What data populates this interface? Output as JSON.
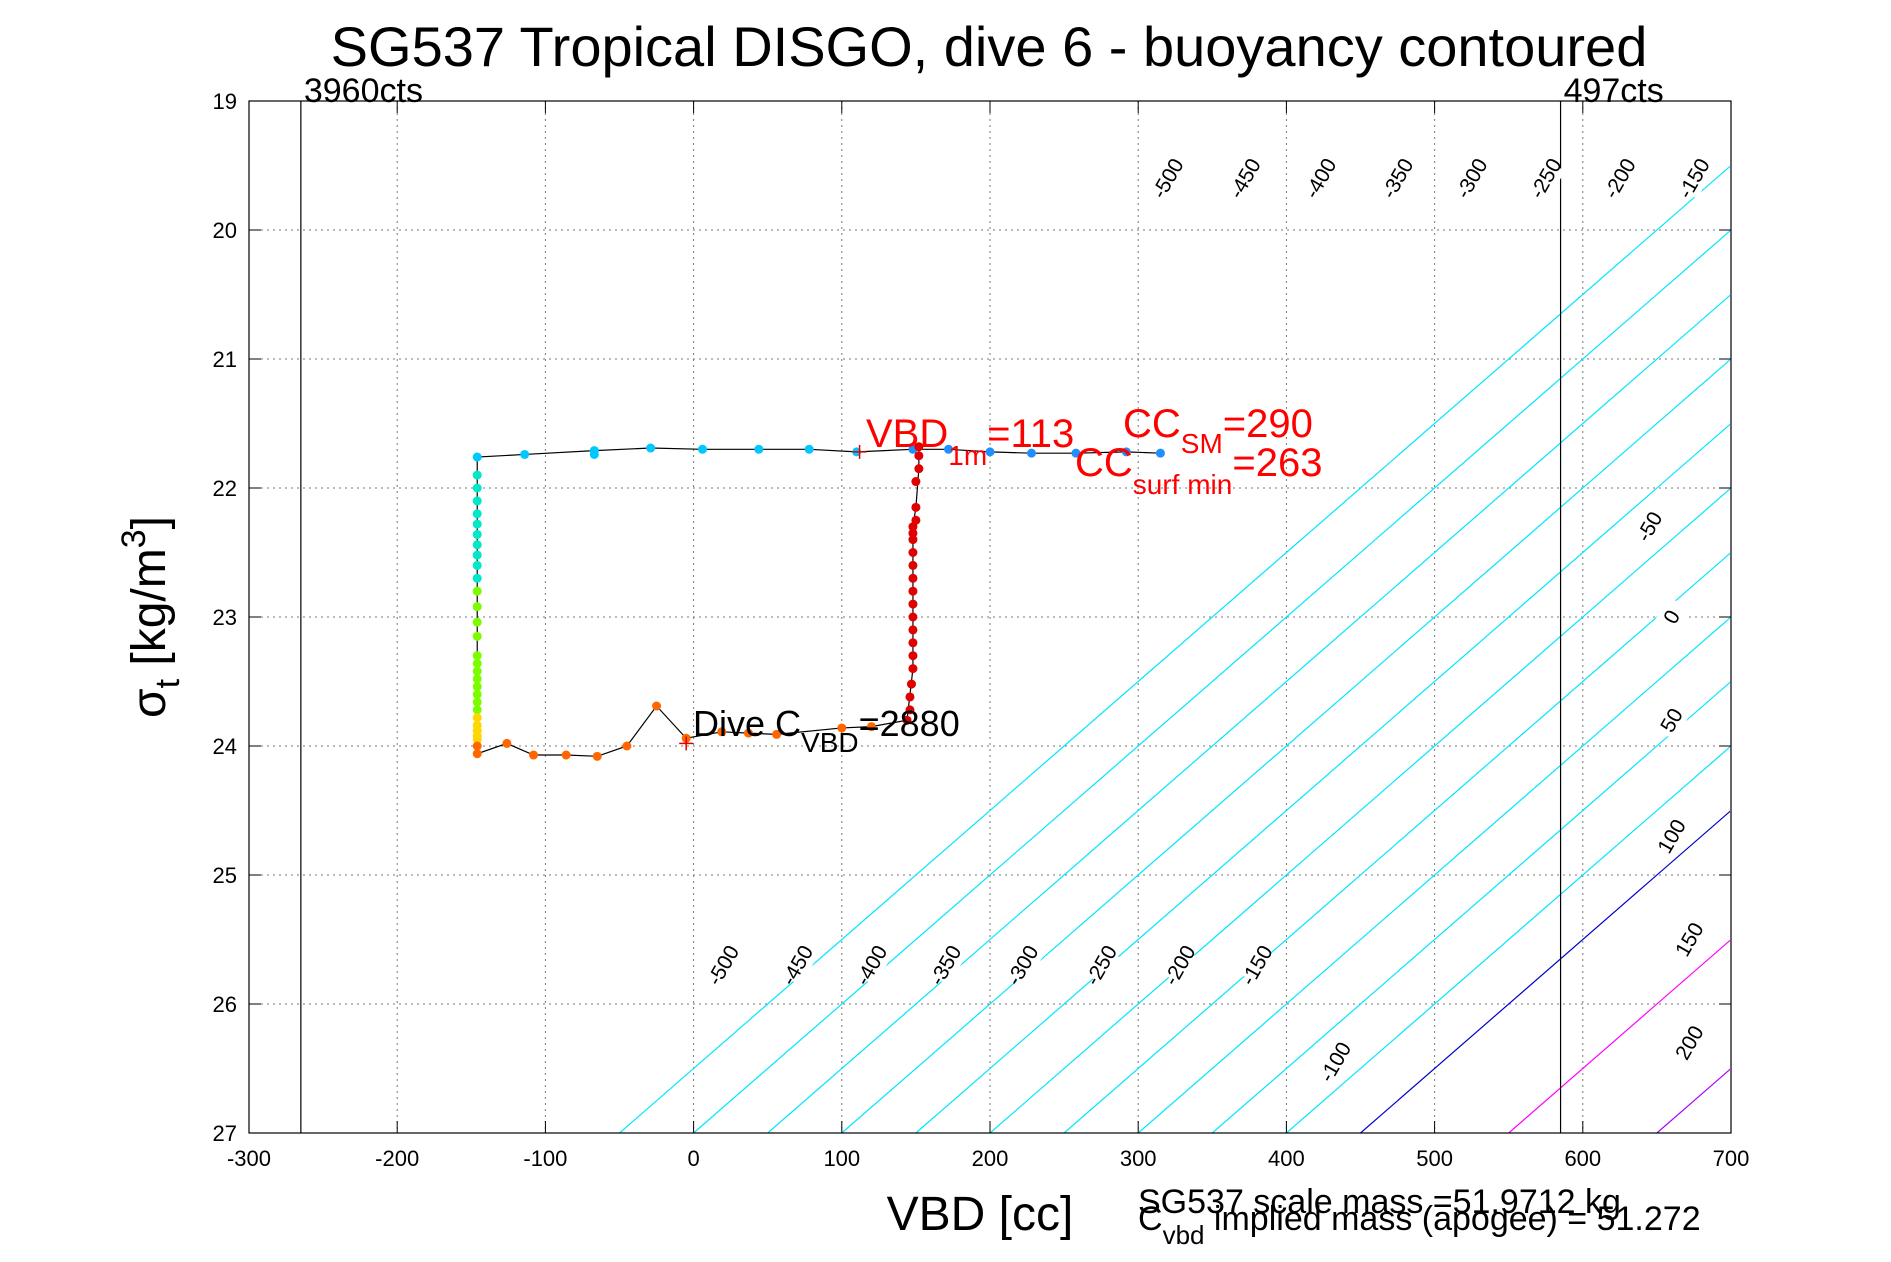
{
  "chart_data": {
    "type": "scatter",
    "title": "SG537 Tropical DISGO, dive 6 - buoyancy contoured",
    "xlabel": "VBD [cc]",
    "ylabel_main": "σ",
    "ylabel_sub": "t",
    "ylabel_unit_pre": " [kg/m",
    "ylabel_unit_sup": "3",
    "ylabel_unit_post": "]",
    "xlim": [
      -300,
      700
    ],
    "ylim": [
      19,
      27
    ],
    "y_reversed": true,
    "grid": true,
    "x_ticks": [
      -300,
      -200,
      -100,
      0,
      100,
      200,
      300,
      400,
      500,
      600,
      700
    ],
    "y_ticks": [
      19,
      20,
      21,
      22,
      23,
      24,
      25,
      26,
      27
    ],
    "vbd_limits": [
      {
        "x": -265,
        "label": "3960cts"
      },
      {
        "x": 585,
        "label": "497cts"
      }
    ],
    "contour_slope_cc_per_sigma": 100,
    "contours": [
      {
        "level": -500,
        "x_at_bottom": -50,
        "color": "#00e5ff"
      },
      {
        "level": -450,
        "x_at_bottom": 0,
        "color": "#00e5ff"
      },
      {
        "level": -400,
        "x_at_bottom": 50,
        "color": "#00e5ff"
      },
      {
        "level": -350,
        "x_at_bottom": 100,
        "color": "#00e5ff"
      },
      {
        "level": -300,
        "x_at_bottom": 150,
        "color": "#00e5ff"
      },
      {
        "level": -250,
        "x_at_bottom": 200,
        "color": "#00e5ff"
      },
      {
        "level": -200,
        "x_at_bottom": 250,
        "color": "#00e5ff"
      },
      {
        "level": -150,
        "x_at_bottom": 300,
        "color": "#00e5ff"
      },
      {
        "level": -100,
        "x_at_bottom": 350,
        "color": "#00e5ff"
      },
      {
        "level": -50,
        "x_at_bottom": 400,
        "color": "#00e5ff"
      },
      {
        "level": 0,
        "x_at_bottom": 450,
        "color": "#0000cc"
      },
      {
        "level": 50,
        "x_at_bottom": 550,
        "color": "#ff00ff"
      },
      {
        "level": 100,
        "x_at_bottom": 650,
        "color": "#aa00ff"
      }
    ],
    "contour_labels": [
      {
        "text": "-500",
        "x": 20,
        "y": 25.7
      },
      {
        "text": "-450",
        "x": 70,
        "y": 25.7
      },
      {
        "text": "-400",
        "x": 120,
        "y": 25.7
      },
      {
        "text": "-350",
        "x": 170,
        "y": 25.7
      },
      {
        "text": "-300",
        "x": 222,
        "y": 25.7
      },
      {
        "text": "-250",
        "x": 275,
        "y": 25.7
      },
      {
        "text": "-200",
        "x": 328,
        "y": 25.7
      },
      {
        "text": "-150",
        "x": 380,
        "y": 25.7
      },
      {
        "text": "-100",
        "x": 433,
        "y": 26.45
      },
      {
        "text": "-500",
        "x": 320,
        "y": 19.6
      },
      {
        "text": "-450",
        "x": 372,
        "y": 19.6
      },
      {
        "text": "-400",
        "x": 423,
        "y": 19.6
      },
      {
        "text": "-350",
        "x": 475,
        "y": 19.6
      },
      {
        "text": "-300",
        "x": 525,
        "y": 19.6
      },
      {
        "text": "-250",
        "x": 575,
        "y": 19.6
      },
      {
        "text": "-200",
        "x": 625,
        "y": 19.6
      },
      {
        "text": "-150",
        "x": 675,
        "y": 19.6
      },
      {
        "text": "-50",
        "x": 645,
        "y": 22.3
      },
      {
        "text": "0",
        "x": 660,
        "y": 23.0
      },
      {
        "text": "50",
        "x": 660,
        "y": 23.8
      },
      {
        "text": "100",
        "x": 660,
        "y": 24.7
      },
      {
        "text": "150",
        "x": 672,
        "y": 25.5
      },
      {
        "text": "200",
        "x": 672,
        "y": 26.3
      }
    ],
    "series": [
      {
        "x": [
          148,
          172,
          200,
          228,
          258,
          292,
          315
        ],
        "y": [
          21.7,
          21.7,
          21.72,
          21.73,
          21.73,
          21.72,
          21.73
        ],
        "color": "#1e90ff"
      },
      {
        "x": [
          110,
          78,
          44,
          6,
          -29,
          -67,
          -67,
          -114,
          -146
        ],
        "y": [
          21.72,
          21.7,
          21.7,
          21.7,
          21.69,
          21.71,
          21.74,
          21.74,
          21.76
        ],
        "color": "#00c8ff"
      },
      {
        "x": [
          -146,
          -146,
          -146,
          -146,
          -146,
          -146,
          -146,
          -146,
          -146,
          -146
        ],
        "y": [
          21.9,
          22.0,
          22.1,
          22.2,
          22.28,
          22.36,
          22.44,
          22.52,
          22.6,
          22.7
        ],
        "color": "#00e8c8"
      },
      {
        "x": [
          -146,
          -146,
          -146,
          -146,
          -146,
          -146,
          -146,
          -146,
          -146,
          -146,
          -146,
          -146
        ],
        "y": [
          22.8,
          22.92,
          23.04,
          23.15,
          23.3,
          23.36,
          23.42,
          23.48,
          23.54,
          23.6,
          23.66,
          23.72
        ],
        "color": "#7cfc00"
      },
      {
        "x": [
          -146,
          -146,
          -146,
          -146,
          -146
        ],
        "y": [
          23.78,
          23.84,
          23.88,
          23.92,
          23.95
        ],
        "color": "#ffd700"
      },
      {
        "x": [
          -146,
          -146,
          -126,
          -108,
          -86,
          -65,
          -45,
          -25,
          -5,
          19,
          37,
          56,
          100,
          120
        ],
        "y": [
          24.0,
          24.06,
          23.98,
          24.07,
          24.07,
          24.08,
          24.0,
          23.69,
          23.94,
          23.89,
          23.9,
          23.91,
          23.86,
          23.85
        ],
        "color": "#ff6600"
      },
      {
        "x": [
          144,
          146,
          146,
          147,
          148,
          148,
          148,
          148,
          148,
          148,
          148,
          148,
          148,
          148,
          148,
          148,
          148,
          150,
          150,
          150,
          152,
          152,
          152
        ],
        "y": [
          23.8,
          23.72,
          23.62,
          23.52,
          23.4,
          23.3,
          23.2,
          23.1,
          23.0,
          22.9,
          22.8,
          22.7,
          22.6,
          22.5,
          22.4,
          22.35,
          22.3,
          22.25,
          22.15,
          21.95,
          21.85,
          21.75,
          21.68
        ],
        "color": "#e00000"
      }
    ],
    "line": {
      "x": [
        315,
        292,
        258,
        228,
        200,
        172,
        148,
        110,
        78,
        44,
        6,
        -29,
        -67,
        -114,
        -146,
        -146,
        -146,
        -126,
        -108,
        -86,
        -65,
        -45,
        -25,
        -5,
        19,
        37,
        56,
        100,
        120,
        144,
        148,
        148,
        148,
        150,
        152,
        152
      ],
      "y": [
        21.73,
        21.72,
        21.73,
        21.73,
        21.72,
        21.7,
        21.7,
        21.72,
        21.7,
        21.7,
        21.7,
        21.69,
        21.71,
        21.74,
        21.76,
        24.0,
        24.06,
        23.98,
        24.07,
        24.07,
        24.08,
        24.0,
        23.69,
        23.94,
        23.89,
        23.9,
        23.91,
        23.86,
        23.85,
        23.8,
        23.4,
        22.8,
        22.3,
        22.15,
        21.85,
        21.68
      ]
    },
    "markers": [
      {
        "x": 112,
        "y": 21.72,
        "color": "#e00000"
      },
      {
        "x": -5,
        "y": 23.98,
        "color": "#e00000"
      }
    ],
    "annotations": {
      "vbd1m": {
        "main": "VBD",
        "sub": "1m",
        "post": "=113",
        "color": "#ff0000"
      },
      "ccsm": {
        "main": "CC",
        "sub": "SM",
        "post": "=290",
        "color": "#ff0000"
      },
      "ccsurf": {
        "main": "CC",
        "sub": "surf min",
        "post": "=263",
        "color": "#ff0000"
      },
      "divec": {
        "main": "Dive C",
        "sub": "VBD",
        "post": "=2880",
        "color": "#000000"
      }
    },
    "footer": {
      "scale_mass": "SG537 scale mass =51.9712 kg",
      "implied_main": "C",
      "implied_sub": "vbd",
      "implied_post": " implied mass (apogee) = 51.272"
    }
  }
}
